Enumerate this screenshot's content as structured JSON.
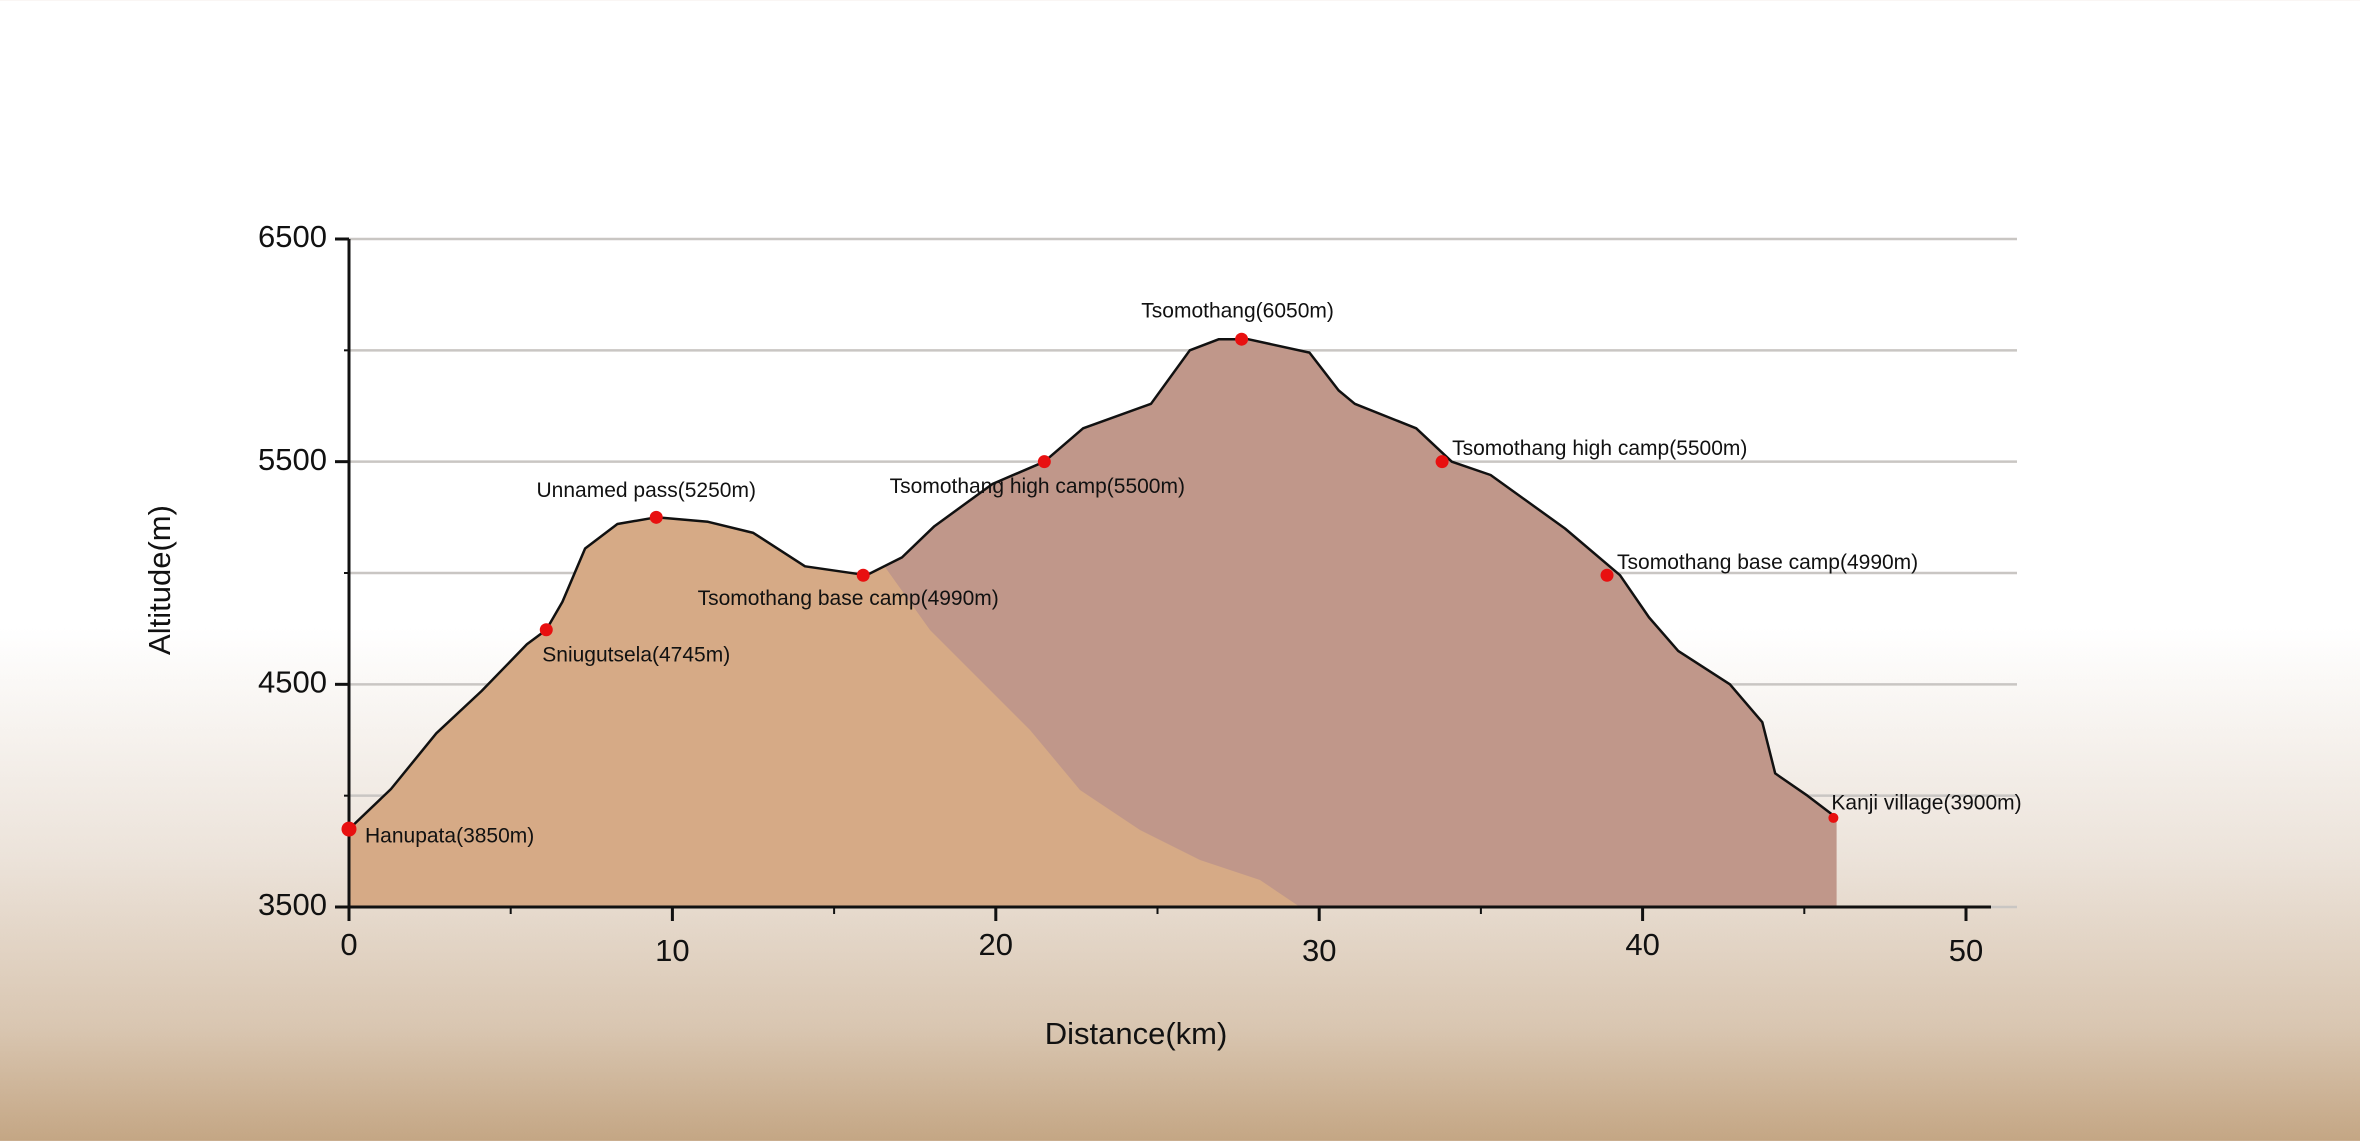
{
  "chart_data": {
    "type": "area",
    "xlabel": "Distance(km)",
    "ylabel": "Altitude(m)",
    "x": [
      0,
      1.3,
      2.7,
      4.1,
      5.5,
      6.1,
      6.6,
      7.3,
      8.3,
      9.5,
      11.1,
      12.5,
      14.1,
      16,
      17.1,
      18.1,
      19.9,
      21.5,
      22.7,
      24.8,
      26,
      26.9,
      27.8,
      29.7,
      30.6,
      31.1,
      33,
      34.1,
      35.3,
      37.6,
      39.3,
      40.2,
      41.1,
      42.7,
      43.7,
      44.1,
      45.1,
      46
    ],
    "values": [
      3850,
      4030,
      4280,
      4470,
      4680,
      4745,
      4870,
      5110,
      5220,
      5250,
      5230,
      5180,
      5030,
      4990,
      5070,
      5210,
      5400,
      5500,
      5650,
      5760,
      6000,
      6050,
      6050,
      5990,
      5820,
      5760,
      5650,
      5500,
      5440,
      5200,
      4990,
      4800,
      4650,
      4500,
      4330,
      4100,
      4000,
      3900
    ],
    "color": "#c0978a",
    "front_color": "#d6aa86",
    "line_color": "#111111",
    "marker_color": "#e81010",
    "waypoints": [
      {
        "label": "Hanupata(3850m)",
        "x": 0,
        "y": 3850
      },
      {
        "label": "Sniugutsela(4745m)",
        "x": 6.1,
        "y": 4745
      },
      {
        "label": "Unnamed pass(5250m)",
        "x": 9.5,
        "y": 5250
      },
      {
        "label": "Tsomothang base camp(4990m)",
        "x": 15.9,
        "y": 4990
      },
      {
        "label": "Tsomothang high camp(5500m)",
        "x": 21.5,
        "y": 5500
      },
      {
        "label": "Tsomothang(6050m)",
        "x": 27.6,
        "y": 6050
      },
      {
        "label": "Tsomothang high camp(5500m)",
        "x": 33.8,
        "y": 5500
      },
      {
        "label": "Tsomothang base camp(4990m)",
        "x": 38.9,
        "y": 4990
      },
      {
        "label": "Kanji village(3900m)",
        "x": 45.9,
        "y": 3900
      }
    ],
    "xlim": [
      0,
      50
    ],
    "ylim": [
      3500,
      6500
    ],
    "xticks": [
      0,
      10,
      20,
      30,
      40,
      50
    ],
    "minor_xticks": [
      5,
      15,
      25,
      35,
      45
    ],
    "yticks": [
      3500,
      4500,
      5500,
      6500
    ],
    "minor_yticks": [
      4000,
      5000,
      6000
    ],
    "grid": true
  }
}
